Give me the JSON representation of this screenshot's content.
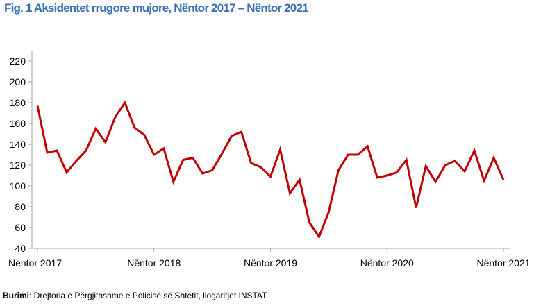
{
  "figure": {
    "title": "Fig. 1 Aksidentet rrugore mujore, Nëntor 2017 – Nëntor 2021",
    "source_label": "Burimi",
    "source_text": ": Drejtoria e Përgjithshme e Policisë së Shtetit, llogaritjet INSTAT"
  },
  "colors": {
    "title": "#3a6fb6",
    "line": "#c00000",
    "axis": "#a6a6a6",
    "text": "#000000"
  },
  "chart_data": {
    "type": "line",
    "title": "Fig. 1 Aksidentet rrugore mujore, Nëntor 2017 – Nëntor 2021",
    "xlabel": "",
    "ylabel": "",
    "ylim": [
      40,
      220
    ],
    "yticks": [
      40,
      60,
      80,
      100,
      120,
      140,
      160,
      180,
      200,
      220
    ],
    "grid": false,
    "legend": "none",
    "x_tick_labels": [
      {
        "index": 0,
        "label": "Nëntor 2017"
      },
      {
        "index": 12,
        "label": "Nëntor 2018"
      },
      {
        "index": 24,
        "label": "Nëntor 2019"
      },
      {
        "index": 36,
        "label": "Nëntor 2020"
      },
      {
        "index": 48,
        "label": "Nëntor 2021"
      }
    ],
    "series": [
      {
        "name": "Aksidentet rrugore mujore",
        "values": [
          177,
          132,
          134,
          113,
          124,
          134,
          155,
          142,
          166,
          180,
          156,
          149,
          130,
          136,
          104,
          125,
          127,
          112,
          115,
          131,
          148,
          152,
          122,
          118,
          109,
          135,
          93,
          106,
          65,
          51,
          75,
          115,
          130,
          130,
          138,
          108,
          110,
          113,
          125,
          79,
          119,
          104,
          120,
          124,
          114,
          134,
          105,
          127,
          106
        ]
      }
    ]
  }
}
